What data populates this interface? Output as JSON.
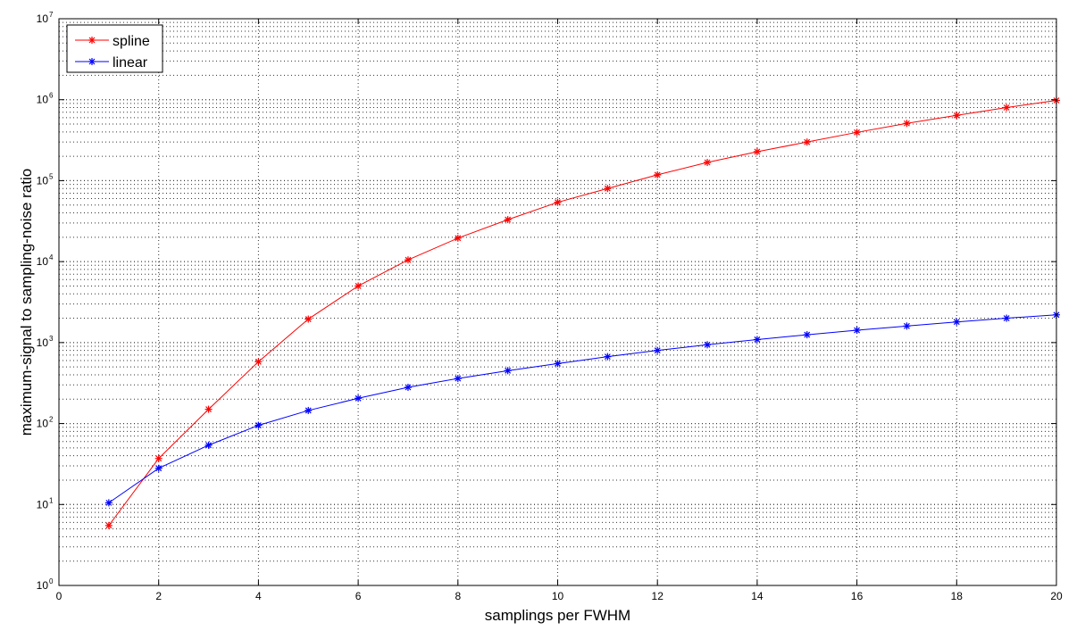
{
  "chart_data": {
    "type": "line",
    "title": "",
    "xlabel": "samplings per FWHM",
    "ylabel": "maximum-signal to sampling-noise ratio",
    "xlim": [
      0,
      20
    ],
    "ylim": [
      1,
      10000000
    ],
    "yscale": "log",
    "grid": true,
    "legend_position": "top-left",
    "x_ticks": [
      0,
      2,
      4,
      6,
      8,
      10,
      12,
      14,
      16,
      18,
      20
    ],
    "x_tick_labels": [
      "0",
      "2",
      "4",
      "6",
      "8",
      "10",
      "12",
      "14",
      "16",
      "18",
      "20"
    ],
    "y_tick_labels": [
      {
        "base": "10",
        "exp": "0"
      },
      {
        "base": "10",
        "exp": "1"
      },
      {
        "base": "10",
        "exp": "2"
      },
      {
        "base": "10",
        "exp": "3"
      },
      {
        "base": "10",
        "exp": "4"
      },
      {
        "base": "10",
        "exp": "5"
      },
      {
        "base": "10",
        "exp": "6"
      },
      {
        "base": "10",
        "exp": "7"
      }
    ],
    "x": [
      1,
      2,
      3,
      4,
      5,
      6,
      7,
      8,
      9,
      10,
      11,
      12,
      13,
      14,
      15,
      16,
      17,
      18,
      19,
      20
    ],
    "series": [
      {
        "name": "spline",
        "color": "#ff0000",
        "marker": "star",
        "values": [
          5.5,
          37,
          150,
          580,
          1950,
          5000,
          10500,
          19500,
          33000,
          54000,
          80000,
          118000,
          168000,
          228000,
          300000,
          395000,
          510000,
          640000,
          800000,
          980000
        ]
      },
      {
        "name": "linear",
        "color": "#0000ff",
        "marker": "star",
        "values": [
          10.5,
          28,
          54,
          95,
          145,
          205,
          280,
          360,
          450,
          550,
          670,
          800,
          940,
          1090,
          1250,
          1420,
          1600,
          1800,
          2000,
          2200
        ]
      }
    ]
  }
}
